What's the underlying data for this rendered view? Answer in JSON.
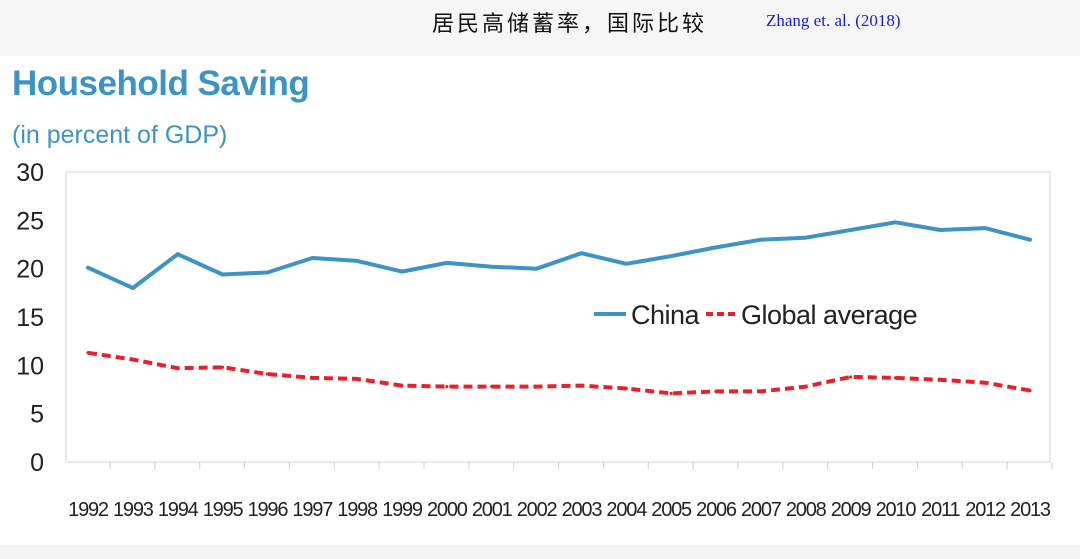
{
  "header": {
    "cn_title": "居民高储蓄率，国际比较",
    "citation": "Zhang et. al. (2018)"
  },
  "chart_data": {
    "type": "line",
    "title": "Household Saving",
    "subtitle": "(in percent of GDP)",
    "xlabel": "",
    "ylabel": "",
    "ylim": [
      0,
      30
    ],
    "yticks": [
      0,
      5,
      10,
      15,
      20,
      25,
      30
    ],
    "x": [
      "1992",
      "1993",
      "1994",
      "1995",
      "1996",
      "1997",
      "1998",
      "1999",
      "2000",
      "2001",
      "2002",
      "2003",
      "2004",
      "2005",
      "2006",
      "2007",
      "2008",
      "2009",
      "2010",
      "2011",
      "2012",
      "2013"
    ],
    "legend_position": "right-center",
    "grid": false,
    "series": [
      {
        "name": "China",
        "color": "#3d94c4",
        "style": "solid",
        "values": [
          20.1,
          18.0,
          21.5,
          19.4,
          19.6,
          21.1,
          20.8,
          19.7,
          20.6,
          20.2,
          20.0,
          21.6,
          20.5,
          21.3,
          22.2,
          23.0,
          23.2,
          24.0,
          24.8,
          24.0,
          24.2,
          23.0
        ]
      },
      {
        "name": "Global average",
        "color": "#e8202a",
        "style": "dashed",
        "values": [
          11.3,
          10.6,
          9.7,
          9.8,
          9.1,
          8.7,
          8.6,
          7.9,
          7.8,
          7.8,
          7.8,
          7.9,
          7.6,
          7.1,
          7.3,
          7.3,
          7.8,
          8.8,
          8.7,
          8.5,
          8.2,
          7.4
        ]
      }
    ]
  }
}
